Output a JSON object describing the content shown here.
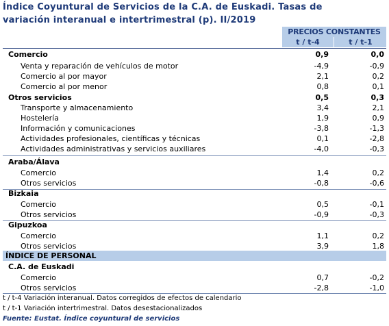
{
  "title_line1": "Índice Coyuntural de Servicios de la C.A. de Euskadi. Tasas de",
  "title_line2": "variación interanual e intertrimestral (p). II/2019",
  "header": {
    "group": "PRECIOS CONSTANTES",
    "col1": "t / t-4",
    "col2": "t / t-1"
  },
  "rows": [
    {
      "label": "Comercio",
      "v1": "0,9",
      "v2": "0,0"
    },
    {
      "label": "Venta y reparación de vehículos de motor",
      "v1": "-4,9",
      "v2": "-0,9"
    },
    {
      "label": "Comercio al por mayor",
      "v1": "2,1",
      "v2": "0,2"
    },
    {
      "label": "Comercio al por menor",
      "v1": "0,8",
      "v2": "0,1"
    },
    {
      "label": "Otros servicios",
      "v1": "0,5",
      "v2": "0,3"
    },
    {
      "label": "Transporte y almacenamiento",
      "v1": "3,4",
      "v2": "2,1"
    },
    {
      "label": "Hostelería",
      "v1": "1,9",
      "v2": "0,9"
    },
    {
      "label": "Información y comunicaciones",
      "v1": "-3,8",
      "v2": "-1,3"
    },
    {
      "label": "Actividades profesionales, científicas y técnicas",
      "v1": "0,1",
      "v2": "-2,8"
    },
    {
      "label": "Actividades administrativas y servicios auxiliares",
      "v1": "-4,0",
      "v2": "-0,3"
    }
  ],
  "territories": [
    {
      "name": "Araba/Álava",
      "comercio": {
        "label": "Comercio",
        "v1": "1,4",
        "v2": "0,2"
      },
      "otros": {
        "label": "Otros servicios",
        "v1": "-0,8",
        "v2": "-0,6"
      }
    },
    {
      "name": "Bizkaia",
      "comercio": {
        "label": "Comercio",
        "v1": "0,5",
        "v2": "-0,1"
      },
      "otros": {
        "label": "Otros servicios",
        "v1": "-0,9",
        "v2": "-0,3"
      }
    },
    {
      "name": "Gipuzkoa",
      "comercio": {
        "label": "Comercio",
        "v1": "1,1",
        "v2": "0,2"
      },
      "otros": {
        "label": "Otros servicios",
        "v1": "3,9",
        "v2": "1,8"
      }
    }
  ],
  "personal": {
    "band": "ÍNDICE DE PERSONAL",
    "region": "C.A. de Euskadi",
    "comercio": {
      "label": "Comercio",
      "v1": "0,7",
      "v2": "-0,2"
    },
    "otros": {
      "label": "Otros servicios",
      "v1": "-2,8",
      "v2": "-1,0"
    }
  },
  "notes": {
    "n1": "t / t-4 Variación interanual. Datos corregidos de efectos de calendario",
    "n2": "t / t-1 Variación intertrimestral. Datos desestacionalizados",
    "source": "Fuente: Eustat. Índice coyuntural de servicios"
  },
  "colors": {
    "title": "#1e3a78",
    "header_bg": "#b7cde8"
  }
}
